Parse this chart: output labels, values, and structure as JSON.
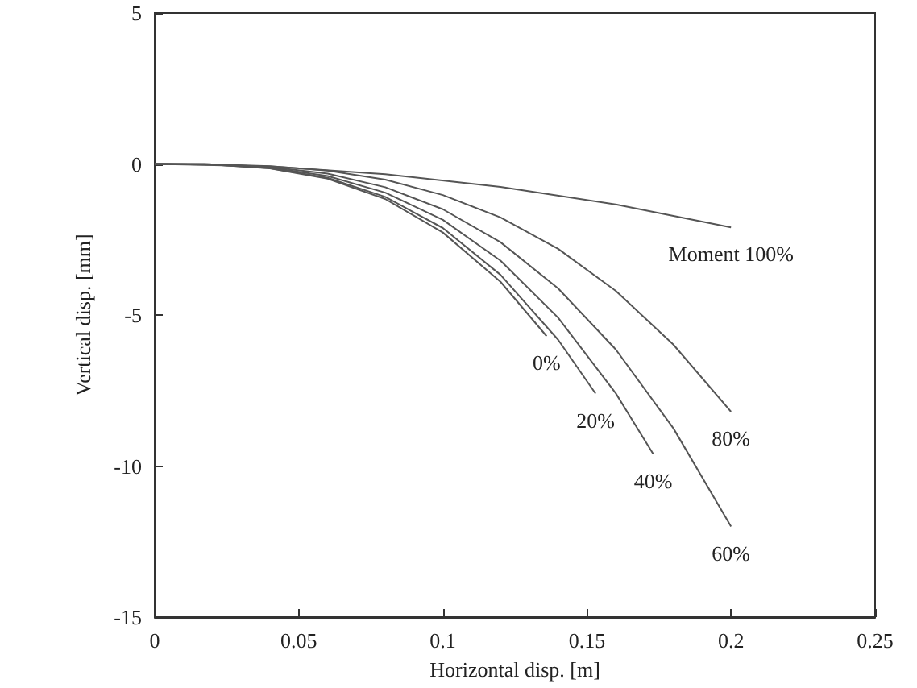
{
  "chart_data": {
    "type": "line",
    "xlabel": "Horizontal disp. [m]",
    "ylabel": "Vertical disp. [mm]",
    "xlim": [
      0,
      0.25
    ],
    "xticks": [
      0,
      0.05,
      0.1,
      0.15,
      0.2,
      0.25
    ],
    "ylim": [
      -15,
      5
    ],
    "yticks": [
      -15,
      -10,
      -5,
      0,
      5
    ],
    "grid": false,
    "legend": false,
    "marker": "none",
    "line_style": "solid",
    "series": [
      {
        "name": "0%",
        "color": "#555555",
        "x": [
          0,
          0.02,
          0.04,
          0.06,
          0.08,
          0.1,
          0.12,
          0.136
        ],
        "values": [
          0,
          -0.02,
          -0.15,
          -0.49,
          -1.16,
          -2.27,
          -3.9,
          -5.7
        ]
      },
      {
        "name": "20%",
        "color": "#555555",
        "x": [
          0,
          0.02,
          0.04,
          0.06,
          0.08,
          0.1,
          0.12,
          0.14,
          0.153
        ],
        "values": [
          0,
          -0.02,
          -0.14,
          -0.46,
          -1.09,
          -2.12,
          -3.67,
          -5.82,
          -7.6
        ]
      },
      {
        "name": "40%",
        "color": "#555555",
        "x": [
          0,
          0.02,
          0.04,
          0.06,
          0.08,
          0.1,
          0.12,
          0.14,
          0.16,
          0.173
        ],
        "values": [
          0,
          -0.01,
          -0.12,
          -0.4,
          -0.95,
          -1.85,
          -3.2,
          -5.09,
          -7.59,
          -9.6
        ]
      },
      {
        "name": "60%",
        "color": "#555555",
        "x": [
          0,
          0.02,
          0.04,
          0.06,
          0.08,
          0.1,
          0.12,
          0.14,
          0.16,
          0.18,
          0.2
        ],
        "values": [
          0,
          -0.01,
          -0.1,
          -0.32,
          -0.77,
          -1.5,
          -2.59,
          -4.12,
          -6.14,
          -8.75,
          -12
        ]
      },
      {
        "name": "80%",
        "color": "#555555",
        "x": [
          0,
          0.02,
          0.04,
          0.06,
          0.08,
          0.1,
          0.12,
          0.14,
          0.16,
          0.18,
          0.2
        ],
        "values": [
          0,
          -0.01,
          -0.07,
          -0.22,
          -0.52,
          -1.03,
          -1.77,
          -2.81,
          -4.2,
          -5.98,
          -8.2
        ]
      },
      {
        "name": "Moment 100%",
        "color": "#555555",
        "x": [
          0,
          0.04,
          0.08,
          0.12,
          0.16,
          0.2
        ],
        "values": [
          0,
          -0.08,
          -0.34,
          -0.76,
          -1.34,
          -2.1
        ]
      }
    ]
  }
}
